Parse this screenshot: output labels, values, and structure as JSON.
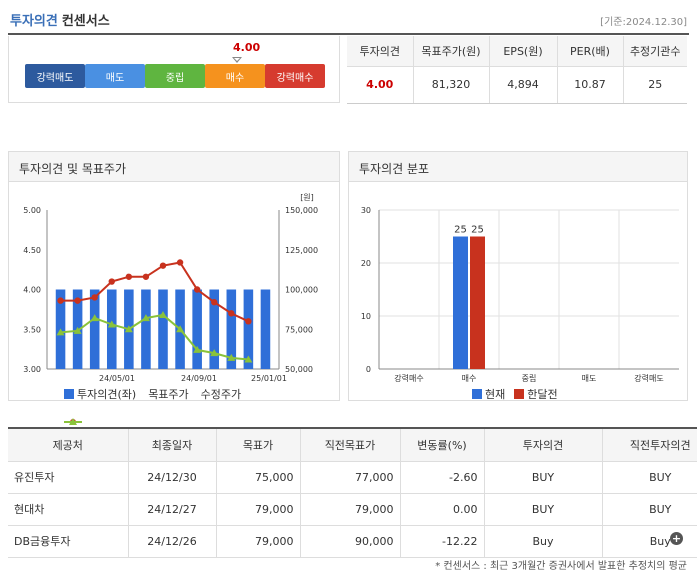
{
  "header": {
    "title_part1": "투자의견",
    "title_part2": "컨센서스",
    "base_date": "[기준:2024.12.30]"
  },
  "gauge": {
    "value_label": "4.00",
    "value": 4.0,
    "segments": [
      "강력매도",
      "매도",
      "중립",
      "매수",
      "강력매수"
    ]
  },
  "summary": {
    "headers": [
      "투자의견",
      "목표주가(원)",
      "EPS(원)",
      "PER(배)",
      "추정기관수"
    ],
    "values": [
      "4.00",
      "81,320",
      "4,894",
      "10.87",
      "25"
    ]
  },
  "chart1": {
    "title": "투자의견 및 목표주가",
    "unit_label": "[원]",
    "legend": [
      "투자의견(좌)",
      "목표주가",
      "수정주가"
    ],
    "colors": {
      "bar": "#2f6fd8",
      "target": "#c8321e",
      "adjusted": "#8ac33a"
    }
  },
  "chart2": {
    "title": "투자의견 분포",
    "legend": [
      "현재",
      "한달전"
    ],
    "colors": {
      "current": "#2f6fd8",
      "month_ago": "#c8321e"
    }
  },
  "chart_data": [
    {
      "type": "bar",
      "title": "투자의견 및 목표주가",
      "ylabel_right": "[원]",
      "y_left_ticks": [
        "5.00",
        "4.50",
        "4.00",
        "3.50",
        "3.00"
      ],
      "y_left_range": [
        3.0,
        5.0
      ],
      "y_right_ticks": [
        "150,000",
        "125,000",
        "100,000",
        "75,000",
        "50,000"
      ],
      "y_right_range": [
        50000,
        150000
      ],
      "x_ticks": [
        "24/05/01",
        "24/09/01",
        "25/01/01"
      ],
      "series": [
        {
          "name": "투자의견(좌)",
          "type": "bar",
          "values": [
            4,
            4,
            4,
            4,
            4,
            4,
            4,
            4,
            4,
            4,
            4,
            4,
            4
          ]
        },
        {
          "name": "목표주가",
          "type": "line",
          "values": [
            93000,
            93000,
            95000,
            105000,
            108000,
            108000,
            115000,
            117000,
            100000,
            92000,
            85000,
            80000
          ]
        },
        {
          "name": "수정주가",
          "type": "line",
          "values": [
            73000,
            74000,
            82000,
            78000,
            75000,
            82000,
            84000,
            75000,
            62000,
            60000,
            57000,
            56000
          ]
        }
      ],
      "grid": false,
      "legend": "bottom"
    },
    {
      "type": "bar",
      "title": "투자의견 분포",
      "categories": [
        "강력매수",
        "매수",
        "중립",
        "매도",
        "강력매도"
      ],
      "y_ticks": [
        "30",
        "20",
        "10",
        "0"
      ],
      "ylim": [
        0,
        30
      ],
      "series": [
        {
          "name": "현재",
          "values": [
            0,
            25,
            0,
            0,
            0
          ]
        },
        {
          "name": "한달전",
          "values": [
            0,
            25,
            0,
            0,
            0
          ]
        }
      ],
      "data_labels": [
        "25",
        "25"
      ],
      "grid": true,
      "legend": "bottom"
    }
  ],
  "detail": {
    "headers": [
      "제공처",
      "최종일자",
      "목표가",
      "직전목표가",
      "변동률(%)",
      "투자의견",
      "직전투자의견"
    ],
    "rows": [
      {
        "provider": "유진투자",
        "date": "24/12/30",
        "target": "75,000",
        "prev_target": "77,000",
        "change": "-2.60",
        "opinion": "BUY",
        "prev_opinion": "BUY"
      },
      {
        "provider": "현대차",
        "date": "24/12/27",
        "target": "79,000",
        "prev_target": "79,000",
        "change": "0.00",
        "opinion": "BUY",
        "prev_opinion": "BUY"
      },
      {
        "provider": "DB금융투자",
        "date": "24/12/26",
        "target": "79,000",
        "prev_target": "90,000",
        "change": "-12.22",
        "opinion": "Buy",
        "prev_opinion": "Buy"
      }
    ],
    "more_icon": "plus-circle-icon"
  },
  "footnote": "* 컨센서스 : 최근 3개월간 증권사에서 발표한 추정치의 평균"
}
